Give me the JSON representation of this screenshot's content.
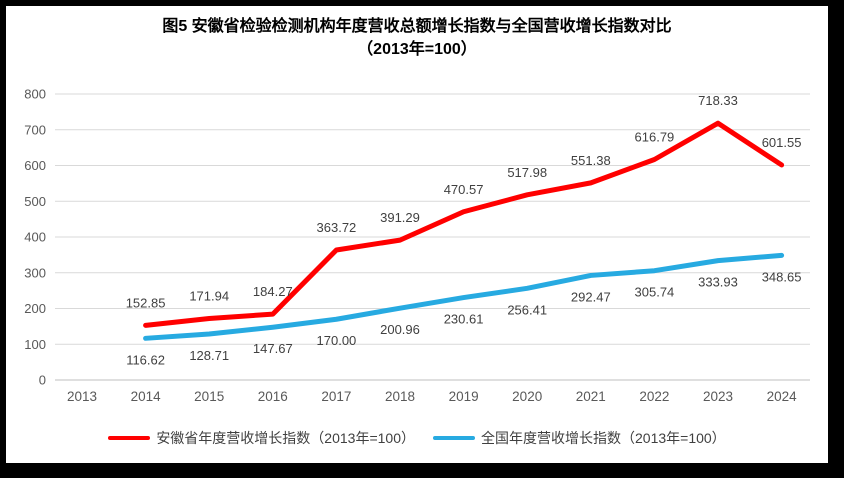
{
  "title": {
    "line1": "图5  安徽省检验检测机构年度营收总额增长指数与全国营收增长指数对比",
    "line2": "（2013年=100）"
  },
  "chart_data": {
    "type": "line",
    "categories": [
      "2013",
      "2014",
      "2015",
      "2016",
      "2017",
      "2018",
      "2019",
      "2020",
      "2021",
      "2022",
      "2023",
      "2024"
    ],
    "series": [
      {
        "name": "安徽省年度营收增长指数（2013年=100）",
        "color": "#FF0000",
        "label_position": "above",
        "values": [
          null,
          152.85,
          171.94,
          184.27,
          363.72,
          391.29,
          470.57,
          517.98,
          551.38,
          616.79,
          718.33,
          601.55
        ]
      },
      {
        "name": "全国年度营收增长指数（2013年=100）",
        "color": "#27AAE1",
        "label_position": "below",
        "values": [
          null,
          116.62,
          128.71,
          147.67,
          170.0,
          200.96,
          230.61,
          256.41,
          292.47,
          305.74,
          333.93,
          348.65
        ]
      }
    ],
    "ylim": [
      0,
      800
    ],
    "yticks": [
      0,
      100,
      200,
      300,
      400,
      500,
      600,
      700,
      800
    ],
    "data_label_decimals": 2,
    "grid": true,
    "legend_position": "bottom",
    "colors": {
      "gridline": "#D9D9D9",
      "axis_line": "#BFBFBF",
      "tick_label": "#595959",
      "data_label": "#404040"
    }
  }
}
